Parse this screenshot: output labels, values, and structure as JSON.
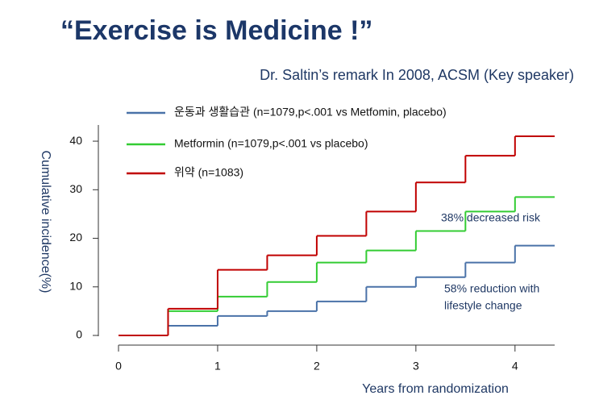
{
  "chart_data": {
    "type": "step",
    "title": "“Exercise is Medicine !”",
    "subtitle": "Dr. Saltin’s remark In 2008, ACSM (Key speaker)",
    "x_label": "Years from randomization",
    "y_label": "Cumulative incidence(%)",
    "x": [
      0,
      0.5,
      1,
      1.5,
      2,
      2.5,
      3,
      3.5,
      4,
      4.4
    ],
    "series": [
      {
        "name": "운동과 생활습관 (n=1079,p<.001 vs Metfomin,  placebo)",
        "color": "#4a72a8",
        "values": [
          0,
          2,
          4,
          5,
          7,
          10,
          12,
          15,
          18.5,
          18.5
        ]
      },
      {
        "name": "Metformin  (n=1079,p<.001  vs placebo)",
        "color": "#33cc33",
        "values": [
          0,
          5,
          8,
          11,
          15,
          17.5,
          21.5,
          25.5,
          28.5,
          28.5
        ]
      },
      {
        "name": "위약 (n=1083)",
        "color": "#c00000",
        "values": [
          0,
          5.5,
          13.5,
          16.5,
          20.5,
          25.5,
          31.5,
          37,
          41,
          41
        ]
      }
    ],
    "annotations": [
      [
        "38%  decreased risk"
      ],
      [
        "58% reduction with",
        "lifestyle change"
      ]
    ],
    "xlim": [
      0,
      4.4
    ],
    "ylim": [
      0,
      43
    ],
    "xticks": [
      0,
      1,
      2,
      3,
      4
    ],
    "yticks": [
      0,
      10,
      20,
      30,
      40
    ],
    "grid": false
  }
}
